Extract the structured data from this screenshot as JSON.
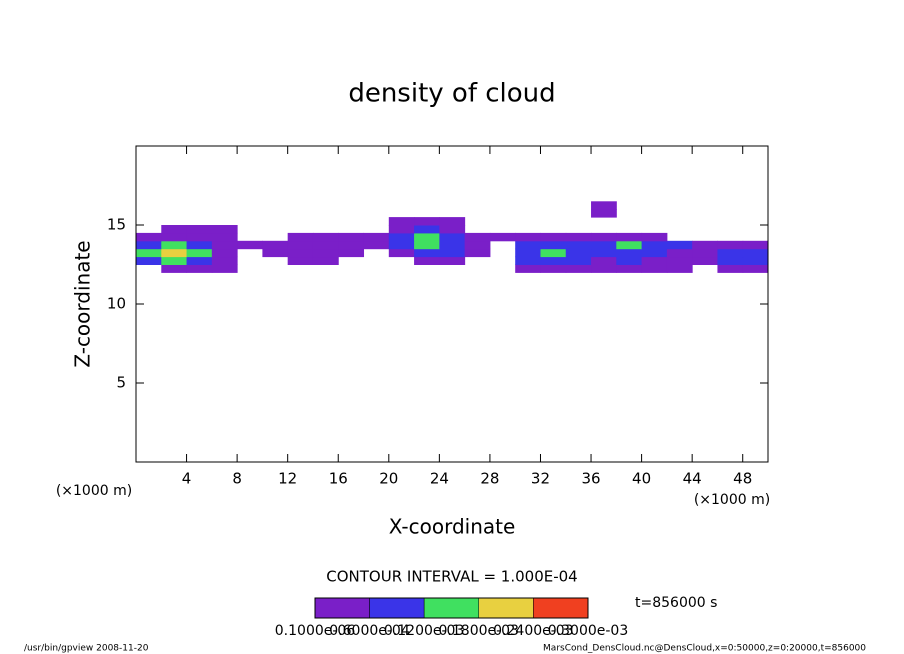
{
  "chart_data": {
    "type": "contour",
    "title": "density of cloud",
    "x_label": "X-coordinate",
    "y_label": "Z-coordinate",
    "x_unit": "(×1000 m)",
    "y_unit": "(×1000 m)",
    "xlim": [
      0,
      50
    ],
    "ylim": [
      0,
      20
    ],
    "xticks": [
      4,
      8,
      12,
      16,
      20,
      24,
      28,
      32,
      36,
      40,
      44,
      48
    ],
    "yticks": [
      5,
      10,
      15
    ],
    "xbins": [
      0,
      2,
      4,
      6,
      8,
      10,
      12,
      14,
      16,
      18,
      20,
      22,
      24,
      26,
      28,
      30,
      32,
      34,
      36,
      38,
      40,
      42,
      44,
      46,
      48,
      50
    ],
    "zbins": [
      12,
      12.5,
      13,
      13.5,
      14,
      14.5,
      15,
      15.5,
      16,
      16.5
    ],
    "values": [
      [
        0,
        3e-05,
        3e-05,
        3e-05,
        0,
        0,
        0,
        0,
        0,
        0,
        0,
        0,
        0,
        0,
        0,
        3e-05,
        3e-05,
        3e-05,
        3e-05,
        3e-05,
        3e-05,
        3e-05,
        0,
        3e-05,
        3e-05
      ],
      [
        8e-05,
        0.00015,
        8e-05,
        3e-05,
        0,
        0,
        3e-05,
        3e-05,
        0,
        0,
        0,
        3e-05,
        3e-05,
        0,
        0,
        8e-05,
        8e-05,
        8e-05,
        3e-05,
        8e-05,
        3e-05,
        3e-05,
        3e-05,
        8e-05,
        8e-05
      ],
      [
        0.00015,
        0.00022,
        0.00015,
        3e-05,
        0,
        3e-05,
        3e-05,
        3e-05,
        3e-05,
        0,
        3e-05,
        8e-05,
        8e-05,
        3e-05,
        0,
        8e-05,
        0.00015,
        8e-05,
        8e-05,
        8e-05,
        8e-05,
        3e-05,
        3e-05,
        8e-05,
        8e-05
      ],
      [
        8e-05,
        0.00015,
        8e-05,
        3e-05,
        3e-05,
        3e-05,
        3e-05,
        3e-05,
        3e-05,
        3e-05,
        8e-05,
        0.00015,
        8e-05,
        3e-05,
        0,
        8e-05,
        8e-05,
        8e-05,
        8e-05,
        0.00015,
        8e-05,
        8e-05,
        3e-05,
        3e-05,
        3e-05
      ],
      [
        3e-05,
        3e-05,
        3e-05,
        3e-05,
        0,
        0,
        3e-05,
        3e-05,
        3e-05,
        3e-05,
        8e-05,
        0.00015,
        8e-05,
        3e-05,
        3e-05,
        3e-05,
        3e-05,
        3e-05,
        3e-05,
        3e-05,
        3e-05,
        0,
        0,
        0,
        0
      ],
      [
        0,
        3e-05,
        3e-05,
        3e-05,
        0,
        0,
        0,
        0,
        0,
        0,
        3e-05,
        8e-05,
        3e-05,
        0,
        0,
        0,
        0,
        0,
        0,
        0,
        0,
        0,
        0,
        0,
        0
      ],
      [
        0,
        0,
        0,
        0,
        0,
        0,
        0,
        0,
        0,
        0,
        3e-05,
        3e-05,
        3e-05,
        0,
        0,
        0,
        0,
        0,
        0,
        0,
        0,
        0,
        0,
        0,
        0
      ],
      [
        0,
        0,
        0,
        0,
        0,
        0,
        0,
        0,
        0,
        0,
        0,
        0,
        0,
        0,
        0,
        0,
        0,
        0,
        3e-05,
        0,
        0,
        0,
        0,
        0,
        0
      ],
      [
        0,
        0,
        0,
        0,
        0,
        0,
        0,
        0,
        0,
        0,
        0,
        0,
        0,
        0,
        0,
        0,
        0,
        0,
        3e-05,
        0,
        0,
        0,
        0,
        0,
        0
      ]
    ],
    "levels": [
      {
        "value": 1e-07,
        "label": "0.1000e-06"
      },
      {
        "value": 6e-05,
        "label": "0.6000e-04"
      },
      {
        "value": 0.00012,
        "label": "0.1200e-03"
      },
      {
        "value": 0.00018,
        "label": "0.1800e-03"
      },
      {
        "value": 0.00024,
        "label": "0.2400e-03"
      },
      {
        "value": 0.0003,
        "label": "0.3000e-03"
      }
    ],
    "colors": [
      "#7a1fc8",
      "#3a34e8",
      "#40e060",
      "#e8d040",
      "#f04020"
    ],
    "contour_interval": "CONTOUR INTERVAL = 1.000E-04",
    "time_label": "t=856000 s",
    "footer_left": "/usr/bin/gpview   2008-11-20",
    "footer_right": "MarsCond_DensCloud.nc@DensCloud,x=0:50000,z=0:20000,t=856000"
  }
}
